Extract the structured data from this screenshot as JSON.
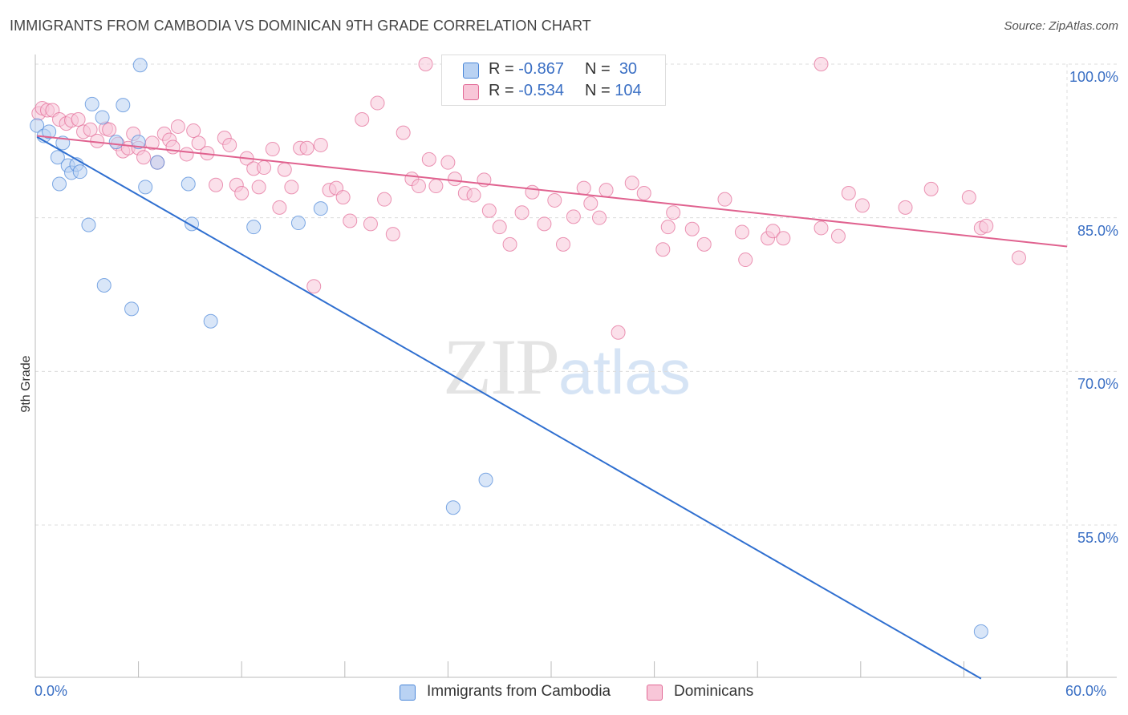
{
  "title": "IMMIGRANTS FROM CAMBODIA VS DOMINICAN 9TH GRADE CORRELATION CHART",
  "source": "Source: ZipAtlas.com",
  "watermark": {
    "a": "ZIP",
    "b": "atlas"
  },
  "legend": {
    "r_label": "R =",
    "n_label": "N =",
    "rows": [
      {
        "r": "-0.867",
        "n": "30",
        "color": "#4a86d8",
        "fill": "#b9d2f3"
      },
      {
        "r": "-0.534",
        "n": "104",
        "color": "#e26a96",
        "fill": "#f8c6d8"
      }
    ]
  },
  "chart_data": {
    "type": "scatter",
    "title": "IMMIGRANTS FROM CAMBODIA VS DOMINICAN 9TH GRADE CORRELATION CHART",
    "xlabel": "",
    "ylabel": "9th Grade",
    "xlim": [
      0,
      60
    ],
    "ylim": [
      40,
      101
    ],
    "x_tick_labels": [
      "0.0%",
      "60.0%"
    ],
    "y_ticks": [
      100,
      85,
      70,
      55
    ],
    "y_tick_labels": [
      "100.0%",
      "85.0%",
      "70.0%",
      "55.0%"
    ],
    "grid": true,
    "legend_position": "bottom",
    "series": [
      {
        "name": "Immigrants from Cambodia",
        "color": "#4a86d8",
        "fill": "#b9d2f3",
        "points": [
          [
            0.1,
            94.0
          ],
          [
            0.5,
            93.0
          ],
          [
            0.8,
            93.4
          ],
          [
            1.3,
            90.9
          ],
          [
            1.4,
            88.3
          ],
          [
            1.6,
            92.3
          ],
          [
            1.9,
            90.1
          ],
          [
            2.1,
            89.4
          ],
          [
            2.4,
            90.2
          ],
          [
            2.6,
            89.5
          ],
          [
            3.1,
            84.3
          ],
          [
            3.3,
            96.1
          ],
          [
            3.9,
            94.8
          ],
          [
            4.0,
            78.4
          ],
          [
            5.1,
            96.0
          ],
          [
            5.6,
            76.1
          ],
          [
            6.1,
            99.9
          ],
          [
            6.4,
            88.0
          ],
          [
            7.1,
            90.4
          ],
          [
            8.9,
            88.3
          ],
          [
            9.1,
            84.4
          ],
          [
            10.2,
            74.9
          ],
          [
            12.7,
            84.1
          ],
          [
            15.3,
            84.5
          ],
          [
            16.6,
            85.9
          ],
          [
            24.3,
            56.7
          ],
          [
            26.2,
            59.4
          ],
          [
            55.0,
            44.6
          ],
          [
            4.7,
            92.4
          ],
          [
            6.0,
            92.4
          ]
        ],
        "trend": {
          "x": [
            0.1,
            55.0
          ],
          "y": [
            92.9,
            40.0
          ]
        }
      },
      {
        "name": "Dominicans",
        "color": "#e26a96",
        "fill": "#f8c6d8",
        "points": [
          [
            0.2,
            95.2
          ],
          [
            0.4,
            95.7
          ],
          [
            0.7,
            95.5
          ],
          [
            1.0,
            95.5
          ],
          [
            1.4,
            94.6
          ],
          [
            1.8,
            94.2
          ],
          [
            2.1,
            94.5
          ],
          [
            2.5,
            94.6
          ],
          [
            2.8,
            93.4
          ],
          [
            3.2,
            93.6
          ],
          [
            3.6,
            92.5
          ],
          [
            4.1,
            93.7
          ],
          [
            4.3,
            93.6
          ],
          [
            4.8,
            92.2
          ],
          [
            5.1,
            91.5
          ],
          [
            5.4,
            91.8
          ],
          [
            5.7,
            93.2
          ],
          [
            6.0,
            91.8
          ],
          [
            6.3,
            90.9
          ],
          [
            6.8,
            92.3
          ],
          [
            7.1,
            90.4
          ],
          [
            7.5,
            93.2
          ],
          [
            7.8,
            92.6
          ],
          [
            8.0,
            91.9
          ],
          [
            8.3,
            93.9
          ],
          [
            8.8,
            91.2
          ],
          [
            9.2,
            93.5
          ],
          [
            9.5,
            92.3
          ],
          [
            10.0,
            91.3
          ],
          [
            10.5,
            88.2
          ],
          [
            11.0,
            92.8
          ],
          [
            11.3,
            92.1
          ],
          [
            11.7,
            88.2
          ],
          [
            12.0,
            87.4
          ],
          [
            12.3,
            90.8
          ],
          [
            12.7,
            89.8
          ],
          [
            13.0,
            88.0
          ],
          [
            13.3,
            89.9
          ],
          [
            13.8,
            91.7
          ],
          [
            14.2,
            86.0
          ],
          [
            14.5,
            89.7
          ],
          [
            14.9,
            88.0
          ],
          [
            15.4,
            91.8
          ],
          [
            15.8,
            91.8
          ],
          [
            16.2,
            78.3
          ],
          [
            16.6,
            92.1
          ],
          [
            17.1,
            87.7
          ],
          [
            17.5,
            87.9
          ],
          [
            17.9,
            87.0
          ],
          [
            18.3,
            84.7
          ],
          [
            19.0,
            94.6
          ],
          [
            19.5,
            84.4
          ],
          [
            19.9,
            96.2
          ],
          [
            20.3,
            86.8
          ],
          [
            20.8,
            83.4
          ],
          [
            21.4,
            93.3
          ],
          [
            21.9,
            88.8
          ],
          [
            22.3,
            88.1
          ],
          [
            22.9,
            90.7
          ],
          [
            23.3,
            88.1
          ],
          [
            24.0,
            90.4
          ],
          [
            24.4,
            88.8
          ],
          [
            25.0,
            87.4
          ],
          [
            25.5,
            87.2
          ],
          [
            26.1,
            88.7
          ],
          [
            26.4,
            85.7
          ],
          [
            27.0,
            84.1
          ],
          [
            27.6,
            82.4
          ],
          [
            28.3,
            85.5
          ],
          [
            28.9,
            87.5
          ],
          [
            29.6,
            84.4
          ],
          [
            30.2,
            86.7
          ],
          [
            30.7,
            82.4
          ],
          [
            31.3,
            85.1
          ],
          [
            31.9,
            87.9
          ],
          [
            32.3,
            86.4
          ],
          [
            32.8,
            85.0
          ],
          [
            33.2,
            87.7
          ],
          [
            33.9,
            73.8
          ],
          [
            34.7,
            88.4
          ],
          [
            35.4,
            87.4
          ],
          [
            36.5,
            81.9
          ],
          [
            36.8,
            84.1
          ],
          [
            37.1,
            85.5
          ],
          [
            38.2,
            83.9
          ],
          [
            38.9,
            82.4
          ],
          [
            40.1,
            86.8
          ],
          [
            41.1,
            83.6
          ],
          [
            41.3,
            80.9
          ],
          [
            42.6,
            83.0
          ],
          [
            42.9,
            83.7
          ],
          [
            43.5,
            83.0
          ],
          [
            45.7,
            84.0
          ],
          [
            46.7,
            83.2
          ],
          [
            47.3,
            87.4
          ],
          [
            48.1,
            86.2
          ],
          [
            50.6,
            86.0
          ],
          [
            52.1,
            87.8
          ],
          [
            54.3,
            87.0
          ],
          [
            55.0,
            84.0
          ],
          [
            55.3,
            84.2
          ],
          [
            57.2,
            81.1
          ],
          [
            22.7,
            100.0
          ],
          [
            45.7,
            100.0
          ]
        ],
        "trend": {
          "x": [
            0.1,
            60.0
          ],
          "y": [
            93.0,
            82.2
          ]
        }
      }
    ]
  }
}
